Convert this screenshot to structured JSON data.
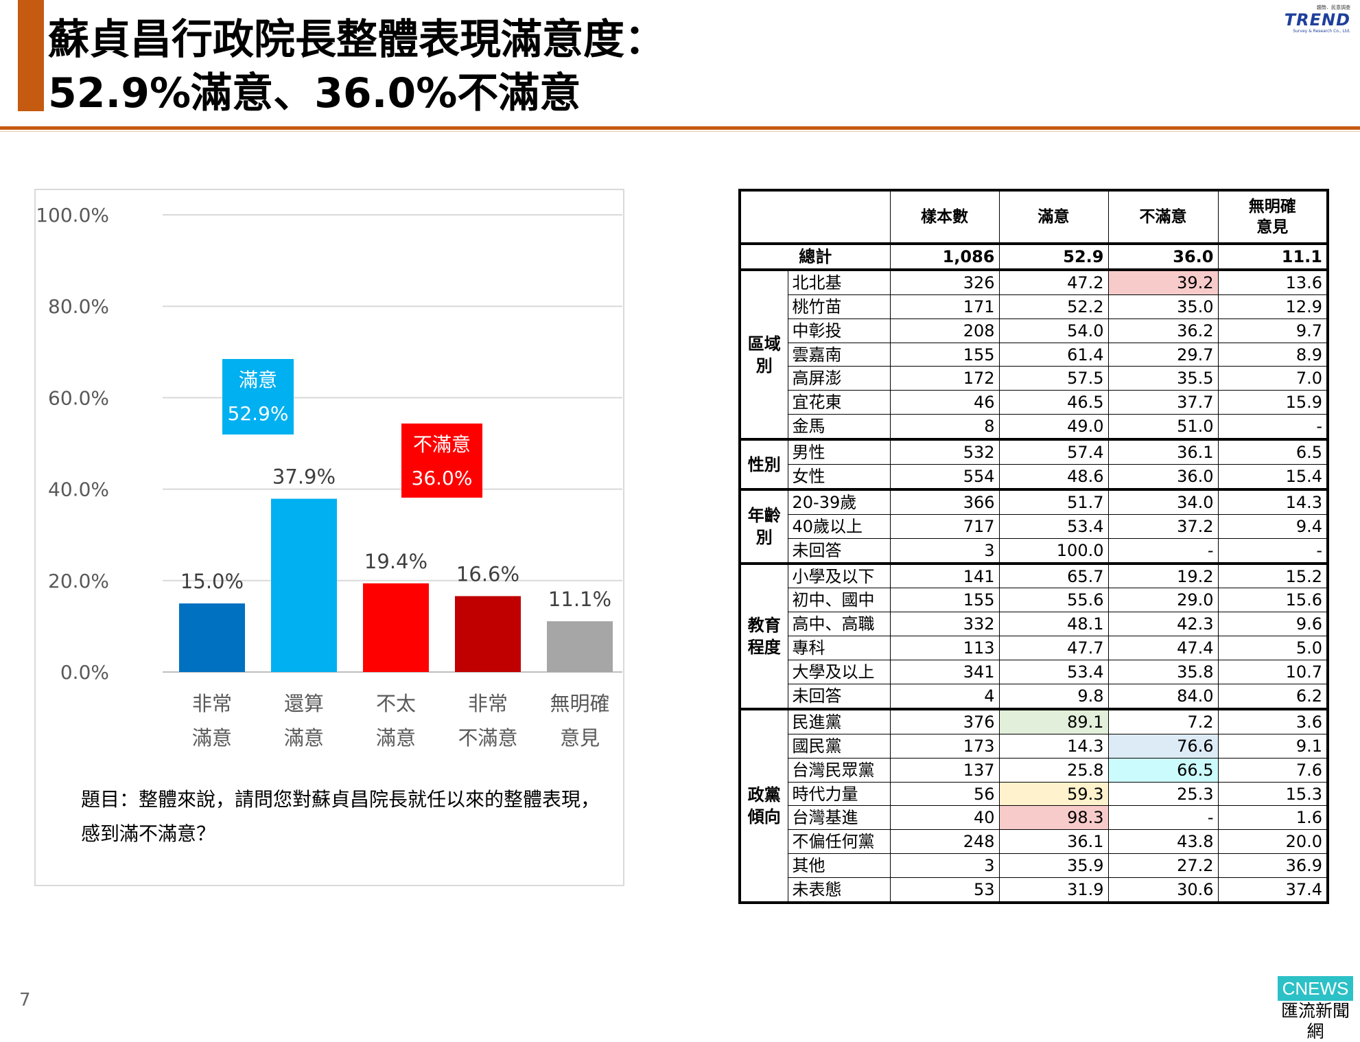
{
  "title": {
    "line1": "蘇貞昌行政院長整體表現滿意度：",
    "line2": "52.9%滿意、36.0%不滿意"
  },
  "logo": {
    "top": "趨勢．民意調查",
    "main": "TREND",
    "sub": "Survey & Research Co., Ltd."
  },
  "question": {
    "line1": "題目：整體來說，請問您對蘇貞昌院長就任以來的整體表現，",
    "line2": "感到滿不滿意？"
  },
  "page_number": "7",
  "footer_logo": {
    "top": "CNEWS",
    "bottom": "匯流新聞網"
  },
  "chart_data": {
    "type": "bar",
    "categories": [
      [
        "非常",
        "滿意"
      ],
      [
        "還算",
        "滿意"
      ],
      [
        "不太",
        "滿意"
      ],
      [
        "非常",
        "不滿意"
      ],
      [
        "無明確",
        "意見"
      ]
    ],
    "values": [
      15.0,
      37.9,
      19.4,
      16.6,
      11.1
    ],
    "value_labels": [
      "15.0%",
      "37.9%",
      "19.4%",
      "16.6%",
      "11.1%"
    ],
    "colors": [
      "#0070c0",
      "#00b0f0",
      "#ff0000",
      "#c00000",
      "#a6a6a6"
    ],
    "ylim": [
      0,
      100
    ],
    "yticks": [
      "0.0%",
      "20.0%",
      "40.0%",
      "60.0%",
      "80.0%",
      "100.0%"
    ],
    "grid": true,
    "annotations": [
      {
        "line1": "滿意",
        "line2": "52.9%",
        "color": "#00b0f0",
        "spans": [
          0,
          1
        ]
      },
      {
        "line1": "不滿意",
        "line2": "36.0%",
        "color": "#ff0000",
        "spans": [
          2,
          3
        ]
      }
    ]
  },
  "table": {
    "headers": [
      "樣本數",
      "滿意",
      "不滿意",
      "無明確\n意見"
    ],
    "total": {
      "label": "總計",
      "values": [
        "1,086",
        "52.9",
        "36.0",
        "11.1"
      ]
    },
    "groups": [
      {
        "name": "區域\n別",
        "rows": [
          {
            "label": "北北基",
            "values": [
              "326",
              "47.2",
              "39.2",
              "13.6"
            ],
            "highlights": {
              "2": "#f8cbcb"
            }
          },
          {
            "label": "桃竹苗",
            "values": [
              "171",
              "52.2",
              "35.0",
              "12.9"
            ]
          },
          {
            "label": "中彰投",
            "values": [
              "208",
              "54.0",
              "36.2",
              "9.7"
            ]
          },
          {
            "label": "雲嘉南",
            "values": [
              "155",
              "61.4",
              "29.7",
              "8.9"
            ]
          },
          {
            "label": "高屏澎",
            "values": [
              "172",
              "57.5",
              "35.5",
              "7.0"
            ]
          },
          {
            "label": "宜花東",
            "values": [
              "46",
              "46.5",
              "37.7",
              "15.9"
            ]
          },
          {
            "label": "金馬",
            "values": [
              "8",
              "49.0",
              "51.0",
              "-"
            ]
          }
        ]
      },
      {
        "name": "性別",
        "rows": [
          {
            "label": "男性",
            "values": [
              "532",
              "57.4",
              "36.1",
              "6.5"
            ]
          },
          {
            "label": "女性",
            "values": [
              "554",
              "48.6",
              "36.0",
              "15.4"
            ]
          }
        ]
      },
      {
        "name": "年齡\n別",
        "rows": [
          {
            "label": "20-39歲",
            "values": [
              "366",
              "51.7",
              "34.0",
              "14.3"
            ]
          },
          {
            "label": "40歲以上",
            "values": [
              "717",
              "53.4",
              "37.2",
              "9.4"
            ]
          },
          {
            "label": "未回答",
            "values": [
              "3",
              "100.0",
              "-",
              "-"
            ]
          }
        ]
      },
      {
        "name": "教育\n程度",
        "rows": [
          {
            "label": "小學及以下",
            "values": [
              "141",
              "65.7",
              "19.2",
              "15.2"
            ]
          },
          {
            "label": "初中、國中",
            "values": [
              "155",
              "55.6",
              "29.0",
              "15.6"
            ]
          },
          {
            "label": "高中、高職",
            "values": [
              "332",
              "48.1",
              "42.3",
              "9.6"
            ]
          },
          {
            "label": "專科",
            "values": [
              "113",
              "47.7",
              "47.4",
              "5.0"
            ]
          },
          {
            "label": "大學及以上",
            "values": [
              "341",
              "53.4",
              "35.8",
              "10.7"
            ]
          },
          {
            "label": "未回答",
            "values": [
              "4",
              "9.8",
              "84.0",
              "6.2"
            ]
          }
        ]
      },
      {
        "name": "政黨\n傾向",
        "rows": [
          {
            "label": "民進黨",
            "values": [
              "376",
              "89.1",
              "7.2",
              "3.6"
            ],
            "highlights": {
              "1": "#e2efda"
            }
          },
          {
            "label": "國民黨",
            "values": [
              "173",
              "14.3",
              "76.6",
              "9.1"
            ],
            "highlights": {
              "2": "#ddebf7"
            }
          },
          {
            "label": "台灣民眾黨",
            "values": [
              "137",
              "25.8",
              "66.5",
              "7.6"
            ],
            "highlights": {
              "2": "#ccfbfd"
            }
          },
          {
            "label": "時代力量",
            "values": [
              "56",
              "59.3",
              "25.3",
              "15.3"
            ],
            "highlights": {
              "1": "#fff2cc"
            }
          },
          {
            "label": "台灣基進",
            "values": [
              "40",
              "98.3",
              "-",
              "1.6"
            ],
            "highlights": {
              "1": "#f8cbcb"
            }
          },
          {
            "label": "不偏任何黨",
            "values": [
              "248",
              "36.1",
              "43.8",
              "20.0"
            ]
          },
          {
            "label": "其他",
            "values": [
              "3",
              "35.9",
              "27.2",
              "36.9"
            ]
          },
          {
            "label": "未表態",
            "values": [
              "53",
              "31.9",
              "30.6",
              "37.4"
            ]
          }
        ]
      }
    ]
  }
}
